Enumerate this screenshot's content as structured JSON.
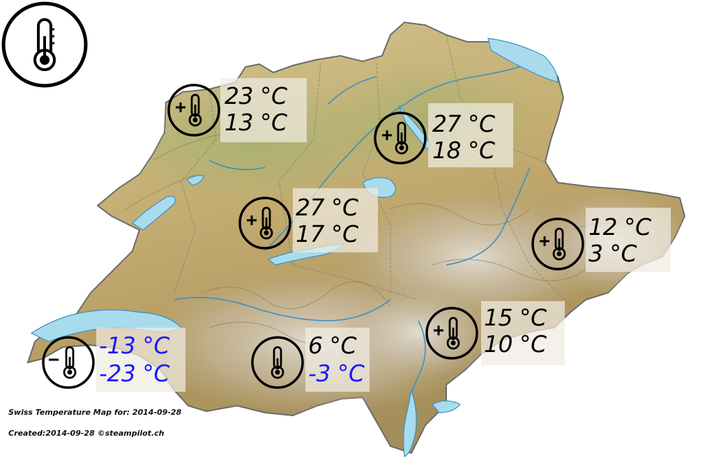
{
  "legend": {
    "icon": "thermometer-icon"
  },
  "stations": [
    {
      "id": "basel",
      "max": "23 °C",
      "min": "13 °C",
      "symbol": "plus",
      "color": "#000000"
    },
    {
      "id": "zurich",
      "max": "27 °C",
      "min": "18 °C",
      "symbol": "plus",
      "color": "#000000"
    },
    {
      "id": "bern",
      "max": "27 °C",
      "min": "17 °C",
      "symbol": "plus",
      "color": "#000000"
    },
    {
      "id": "graubunden",
      "max": "12 °C",
      "min": "3 °C",
      "symbol": "plus",
      "color": "#000000"
    },
    {
      "id": "ticino",
      "max": "15 °C",
      "min": "10 °C",
      "symbol": "plus",
      "color": "#000000"
    },
    {
      "id": "valais",
      "max": "6 °C",
      "min": "-3 °C",
      "symbol": "none",
      "color": "#000000",
      "min_color": "#1a1aff"
    },
    {
      "id": "geneva",
      "max": "-13 °C",
      "min": "-23 °C",
      "symbol": "minus",
      "color": "#1a1aff"
    }
  ],
  "footer": {
    "title": "Swiss Temperature Map for: 2014-09-28",
    "credit": "Created:2014-09-28 ©steampilot.ch"
  },
  "colors": {
    "lake": "#a8dcec",
    "terrain_low": "#cdbd84",
    "terrain_mid": "#b9a46a",
    "terrain_high": "#d8d2c6",
    "river": "#3b8fc4"
  }
}
